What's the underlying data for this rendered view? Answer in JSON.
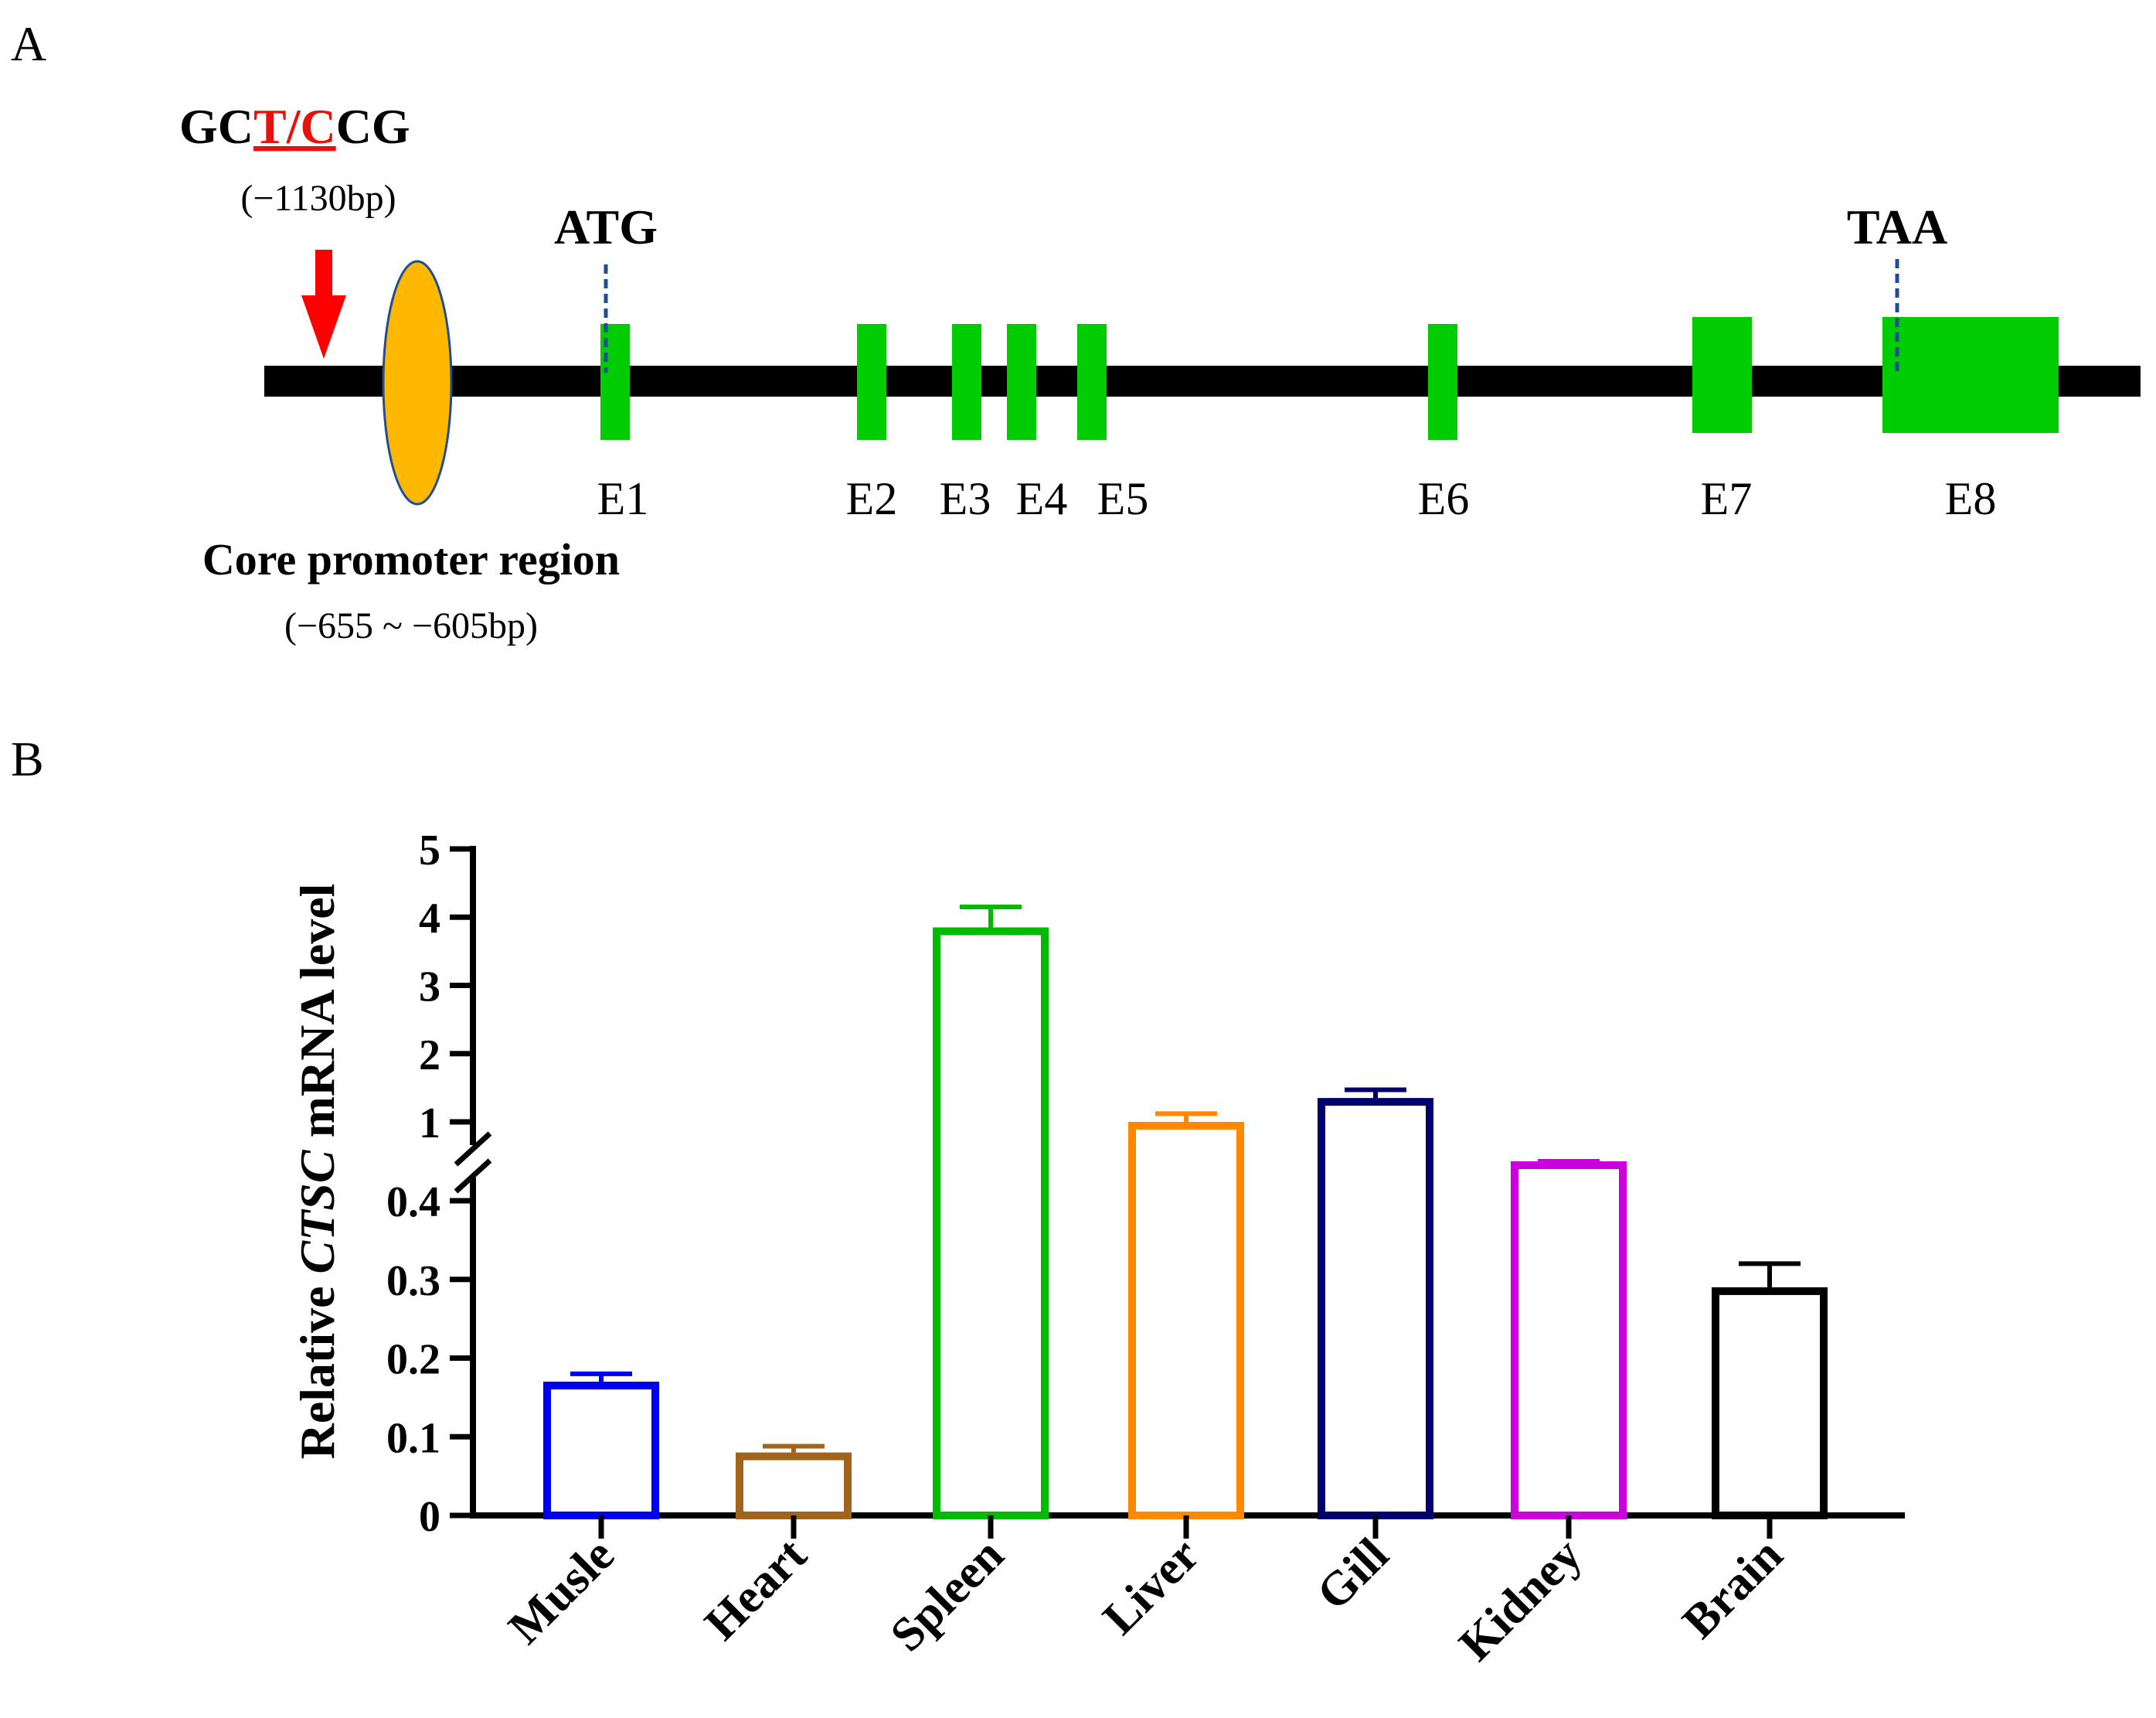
{
  "panel_a": {
    "label": "A",
    "snp": {
      "prefix": "GC",
      "variant": "T/C",
      "suffix": "CG",
      "position": "(−1130bp)"
    },
    "start_codon": "ATG",
    "stop_codon": "TAA",
    "promoter": {
      "title_regular": "Core",
      "title_bold": "promoter region",
      "range": "(−655 ~ −605bp)"
    },
    "exons": [
      {
        "label": "E1"
      },
      {
        "label": "E2"
      },
      {
        "label": "E3"
      },
      {
        "label": "E4"
      },
      {
        "label": "E5"
      },
      {
        "label": "E6"
      },
      {
        "label": "E7"
      },
      {
        "label": "E8"
      }
    ],
    "colors": {
      "exon": "#00cc00",
      "promoter": "#ffb800",
      "promoter_outline": "#1f4e96",
      "arrow": "#ff0000",
      "snp_highlight": "#e8120c",
      "codon_marker": "#1f4e96",
      "line": "#000000"
    }
  },
  "panel_b": {
    "label": "B"
  },
  "chart_data": {
    "type": "bar",
    "title": "",
    "xlabel": "",
    "ylabel_prefix": "Relative ",
    "ylabel_gene": "CTSC",
    "ylabel_suffix": " mRNA level",
    "categories": [
      "Musle",
      "Heart",
      "Spleen",
      "Liver",
      "Gill",
      "Kidney",
      "Brain"
    ],
    "values": [
      0.17,
      0.08,
      3.85,
      1.0,
      1.35,
      0.75,
      0.29
    ],
    "errors": [
      0.01,
      0.008,
      0.3,
      0.12,
      0.12,
      0.05,
      0.03
    ],
    "colors": [
      "#0000ee",
      "#a0651a",
      "#00bb00",
      "#ff8800",
      "#00006e",
      "#cc00dd",
      "#000000"
    ],
    "axis_break": true,
    "lower_segment": {
      "ylim": [
        0,
        0.4
      ],
      "ticks": [
        0,
        0.1,
        0.2,
        0.3,
        0.4
      ],
      "tick_labels": [
        "0",
        "0.1",
        "0.2",
        "0.3",
        "0.4"
      ]
    },
    "upper_segment": {
      "ylim": [
        1,
        5
      ],
      "ticks": [
        1,
        2,
        3,
        4,
        5
      ],
      "tick_labels": [
        "1",
        "2",
        "3",
        "4",
        "5"
      ]
    }
  }
}
